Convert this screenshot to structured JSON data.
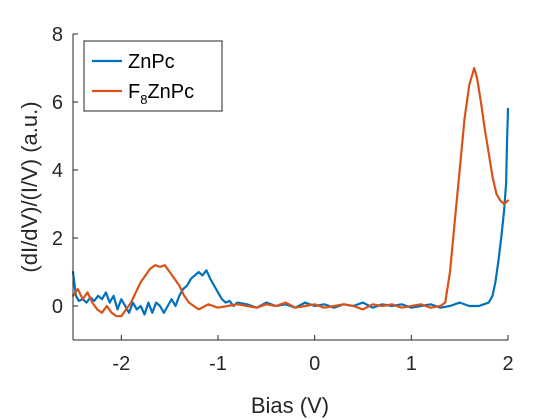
{
  "chart_data": {
    "type": "line",
    "xlabel": "Bias (V)",
    "ylabel": "(dI/dV)/(I/V) (a.u.)",
    "xlim": [
      -2.5,
      2
    ],
    "ylim": [
      -1,
      8
    ],
    "xticks": [
      -2,
      -1,
      0,
      1,
      2
    ],
    "yticks": [
      0,
      2,
      4,
      6,
      8
    ],
    "grid": false,
    "legend_position": "top-left",
    "series": [
      {
        "name": "ZnPc",
        "name_parts": {
          "base": "ZnPc",
          "sub": "",
          "tail": ""
        },
        "color": "#0072BD",
        "x": [
          -2.5,
          -2.47,
          -2.44,
          -2.4,
          -2.36,
          -2.32,
          -2.28,
          -2.24,
          -2.2,
          -2.16,
          -2.12,
          -2.08,
          -2.04,
          -2.0,
          -1.96,
          -1.92,
          -1.88,
          -1.84,
          -1.8,
          -1.76,
          -1.72,
          -1.68,
          -1.64,
          -1.6,
          -1.56,
          -1.52,
          -1.48,
          -1.44,
          -1.4,
          -1.36,
          -1.32,
          -1.28,
          -1.24,
          -1.2,
          -1.16,
          -1.12,
          -1.08,
          -1.04,
          -1.0,
          -0.96,
          -0.92,
          -0.88,
          -0.84,
          -0.8,
          -0.7,
          -0.6,
          -0.5,
          -0.4,
          -0.3,
          -0.2,
          -0.1,
          0.0,
          0.1,
          0.2,
          0.3,
          0.4,
          0.5,
          0.6,
          0.7,
          0.8,
          0.9,
          1.0,
          1.1,
          1.2,
          1.3,
          1.4,
          1.5,
          1.6,
          1.7,
          1.75,
          1.8,
          1.84,
          1.87,
          1.9,
          1.93,
          1.96,
          1.98,
          1.99,
          2.0
        ],
        "y": [
          1.0,
          0.3,
          0.15,
          0.2,
          0.1,
          0.25,
          0.15,
          0.3,
          0.2,
          0.4,
          0.1,
          0.3,
          -0.1,
          0.2,
          0.0,
          -0.2,
          0.1,
          -0.1,
          0.0,
          -0.25,
          0.1,
          -0.2,
          0.1,
          0.0,
          -0.2,
          0.0,
          0.2,
          0.0,
          0.3,
          0.5,
          0.6,
          0.8,
          0.9,
          1.0,
          0.9,
          1.05,
          0.8,
          0.6,
          0.4,
          0.2,
          0.1,
          0.15,
          0.0,
          0.1,
          0.05,
          -0.05,
          0.1,
          0.0,
          0.05,
          -0.05,
          0.1,
          0.0,
          0.05,
          -0.05,
          0.05,
          0.0,
          0.1,
          -0.05,
          0.05,
          0.0,
          0.05,
          -0.05,
          0.0,
          0.05,
          -0.05,
          0.0,
          0.1,
          0.0,
          0.0,
          0.05,
          0.1,
          0.3,
          0.7,
          1.3,
          2.0,
          2.8,
          3.6,
          4.8,
          5.8
        ]
      },
      {
        "name": "F8ZnPc",
        "name_parts": {
          "base": "F",
          "sub": "8",
          "tail": "ZnPc"
        },
        "color": "#D95319",
        "x": [
          -2.5,
          -2.45,
          -2.4,
          -2.35,
          -2.3,
          -2.25,
          -2.2,
          -2.15,
          -2.1,
          -2.05,
          -2.0,
          -1.95,
          -1.9,
          -1.85,
          -1.8,
          -1.75,
          -1.7,
          -1.65,
          -1.6,
          -1.55,
          -1.5,
          -1.45,
          -1.4,
          -1.35,
          -1.3,
          -1.25,
          -1.2,
          -1.1,
          -1.0,
          -0.9,
          -0.8,
          -0.7,
          -0.6,
          -0.5,
          -0.4,
          -0.3,
          -0.2,
          -0.1,
          0.0,
          0.1,
          0.2,
          0.3,
          0.4,
          0.5,
          0.6,
          0.7,
          0.8,
          0.9,
          1.0,
          1.1,
          1.2,
          1.3,
          1.35,
          1.4,
          1.45,
          1.5,
          1.55,
          1.6,
          1.65,
          1.68,
          1.72,
          1.76,
          1.8,
          1.84,
          1.88,
          1.92,
          1.96,
          2.0
        ],
        "y": [
          0.3,
          0.5,
          0.2,
          0.4,
          0.1,
          -0.1,
          -0.2,
          0.0,
          -0.2,
          -0.3,
          -0.3,
          -0.1,
          0.1,
          0.4,
          0.7,
          0.9,
          1.1,
          1.2,
          1.15,
          1.2,
          1.0,
          0.8,
          0.6,
          0.3,
          0.1,
          0.0,
          -0.1,
          0.05,
          -0.05,
          0.0,
          0.05,
          0.0,
          -0.05,
          0.05,
          0.0,
          0.1,
          -0.05,
          0.0,
          0.05,
          -0.05,
          0.0,
          0.05,
          0.0,
          -0.1,
          0.05,
          0.0,
          0.05,
          -0.05,
          0.0,
          0.05,
          -0.05,
          0.0,
          0.1,
          1.0,
          2.5,
          4.0,
          5.5,
          6.5,
          7.0,
          6.7,
          6.0,
          5.2,
          4.5,
          3.8,
          3.3,
          3.1,
          3.0,
          3.1
        ]
      }
    ]
  }
}
